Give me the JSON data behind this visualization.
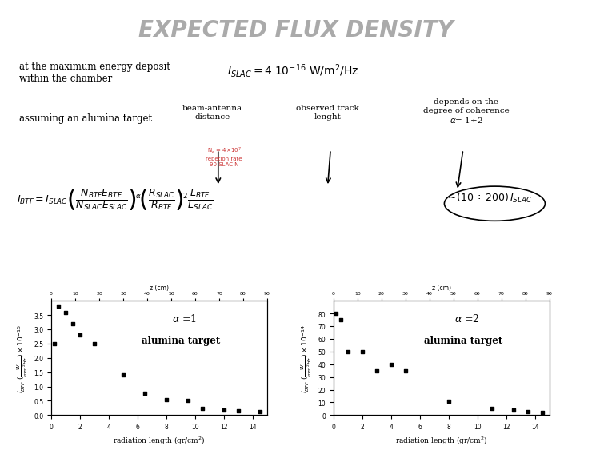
{
  "title": "EXPECTED FLUX DENSITY",
  "title_color": "#aaaaaa",
  "subtitle1": "at the maximum energy deposit\nwithin the chamber",
  "subtitle3": "assuming an alumina target",
  "islac_formula": "$I_{SLAC} = 4\\;10^{-16}$ W/m$^2$/Hz",
  "label_beam_antenna": "beam-antenna\ndistance",
  "label_track": "observed track\nlenght",
  "label_coherence": "depends on the\ndegree of coherence\n$\\alpha$= 1÷2",
  "formula_btf": "$I_{BTF} = I_{SLAC}\\left(\\dfrac{N_{BTF}E_{BTF}}{N_{SLAC}E_{SLAC}}\\right)^{\\!\\alpha}\\!\\left(\\dfrac{R_{SLAC}}{R_{BTF}}\\right)^{\\!2}\\dfrac{L_{BTF}}{L_{SLAC}}$",
  "formula_approx": "$\\sim\\!(10\\div 200)\\,I_{SLAC}$",
  "alpha1_label": "$\\alpha$ =1",
  "alpha2_label": "$\\alpha$ =2",
  "target_label": "alumina target",
  "scatter1_x": [
    0.2,
    0.5,
    1.0,
    1.5,
    2.0,
    3.0,
    5.0,
    6.5,
    8.0,
    9.5,
    10.5,
    12.0,
    13.0,
    14.5
  ],
  "scatter1_y": [
    2.5,
    3.8,
    3.6,
    3.2,
    2.8,
    2.5,
    1.4,
    0.75,
    0.55,
    0.52,
    0.22,
    0.18,
    0.15,
    0.12
  ],
  "scatter2_x": [
    0.2,
    0.5,
    1.0,
    2.0,
    3.0,
    4.0,
    5.0,
    8.0,
    11.0,
    12.5,
    13.5,
    14.5
  ],
  "scatter2_y": [
    80,
    75,
    50,
    50,
    35,
    40,
    35,
    11,
    5,
    4,
    3,
    2
  ],
  "plot1_ylabel": "$I_{BTF}\\;(\\frac{W}{mm^2 Hz}) \\times 10^{-15}$",
  "plot2_ylabel": "$I_{BTF}\\;(\\frac{W}{mm^2 Hz}) \\times 10^{-14}$",
  "plot_xlabel": "radiation length (gr/cm$^2$)",
  "x2ticks": [
    0,
    10,
    20,
    30,
    40,
    50,
    60,
    70,
    80,
    90
  ],
  "xticks": [
    0,
    2,
    4,
    6,
    8,
    10,
    12,
    14
  ],
  "background": "#ffffff",
  "text_color": "#000000",
  "scatter_color": "#000000",
  "red_text_color": "#cc3333"
}
